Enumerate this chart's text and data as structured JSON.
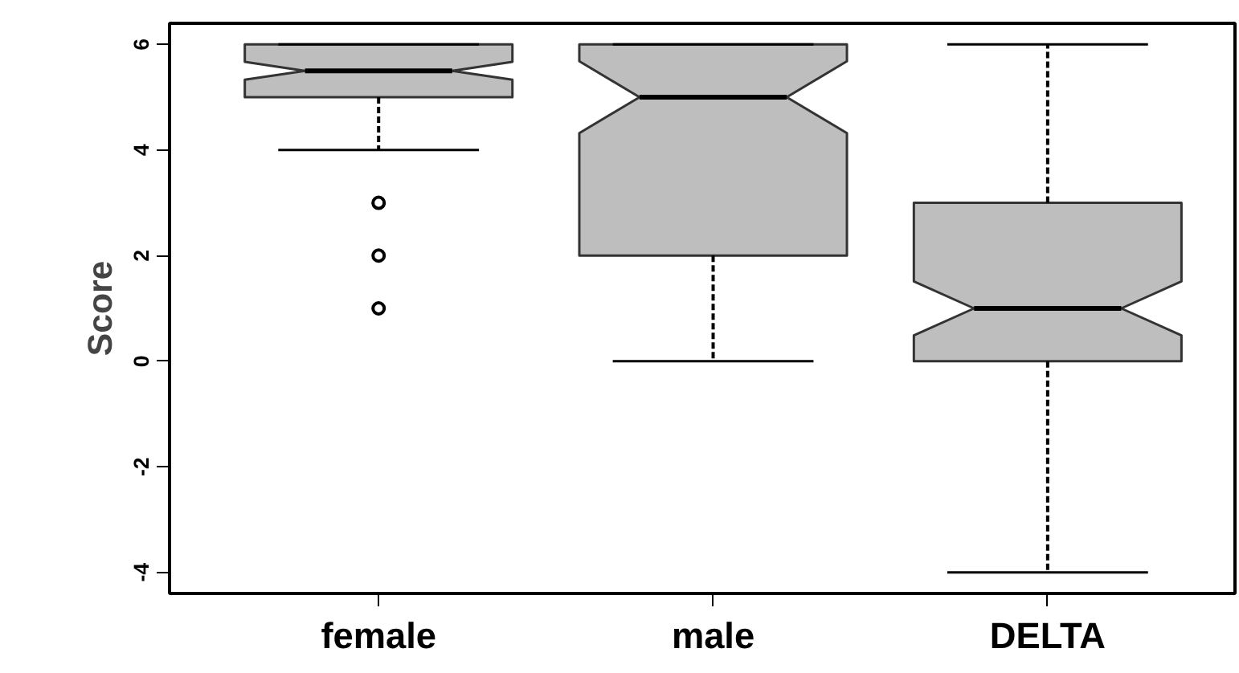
{
  "chart_data": {
    "type": "box",
    "ylabel": "Score",
    "categories": [
      "female",
      "male",
      "DELTA"
    ],
    "color": "#bebebe",
    "ylim": [
      -4.4,
      6.4
    ],
    "yticks": [
      -4,
      -2,
      0,
      2,
      4,
      6
    ],
    "grid": false,
    "boxes": [
      {
        "low": 4,
        "q1": 5,
        "median": 5.5,
        "q3": 6,
        "high": 6,
        "outliers": [
          1,
          2,
          3
        ]
      },
      {
        "low": 0,
        "q1": 2,
        "median": 5,
        "q3": 6,
        "high": 6
      },
      {
        "low": -4,
        "q1": 0,
        "median": 1,
        "q3": 3,
        "high": 6
      }
    ]
  }
}
